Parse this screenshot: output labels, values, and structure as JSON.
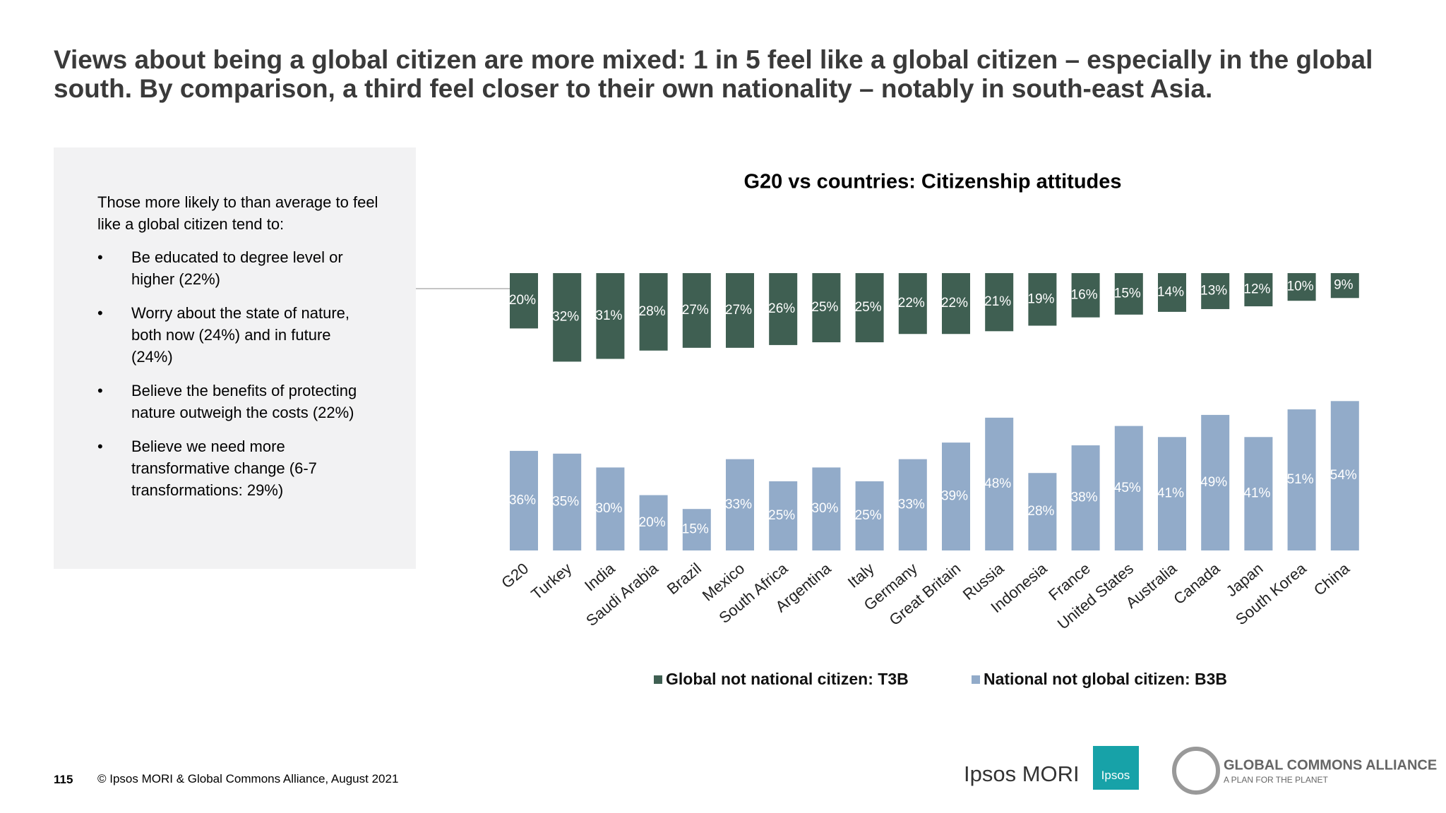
{
  "header": {
    "title": "Views about being a global citizen are more mixed: 1 in 5 feel like a global citizen – especially in the global south. By comparison, a third feel closer to their own nationality – notably in south-east Asia."
  },
  "panel": {
    "intro": "Those more likely to than average to feel like a global citizen tend to:",
    "bullets": [
      "Be educated to degree level or higher (22%)",
      "Worry about the state of nature, both now (24%) and in future (24%)",
      "Believe the benefits of protecting nature outweigh the costs (22%)",
      "Believe we need more transformative change (6-7 transformations: 29%)"
    ]
  },
  "chart_data": {
    "type": "bar",
    "title": "G20 vs countries: Citizenship attitudes",
    "categories": [
      "G20",
      "Turkey",
      "India",
      "Saudi Arabia",
      "Brazil",
      "Mexico",
      "South Africa",
      "Argentina",
      "Italy",
      "Germany",
      "Great Britain",
      "Russia",
      "Indonesia",
      "France",
      "United States",
      "Australia",
      "Canada",
      "Japan",
      "South Korea",
      "China"
    ],
    "series": [
      {
        "name": "Global not national citizen: T3B",
        "color": "#3f5f52",
        "values": [
          20,
          32,
          31,
          28,
          27,
          27,
          26,
          25,
          25,
          22,
          22,
          21,
          19,
          16,
          15,
          14,
          13,
          12,
          10,
          9
        ],
        "value_labels": [
          "20%",
          "32%",
          "31%",
          "28%",
          "27%",
          "27%",
          "26%",
          "25%",
          "25%",
          "22%",
          "22%",
          "21%",
          "19%",
          "16%",
          "15%",
          "14%",
          "13%",
          "12%",
          "10%",
          "9%"
        ]
      },
      {
        "name": "National not global citizen: B3B",
        "color": "#92abc9",
        "values": [
          36,
          35,
          30,
          20,
          15,
          33,
          25,
          30,
          25,
          33,
          39,
          48,
          28,
          38,
          45,
          41,
          49,
          41,
          51,
          54
        ],
        "value_labels": [
          "36%",
          "35%",
          "30%",
          "20%",
          "15%",
          "33%",
          "25%",
          "30%",
          "25%",
          "33%",
          "39%",
          "48%",
          "28%",
          "38%",
          "45%",
          "41%",
          "49%",
          "41%",
          "51%",
          "54%"
        ]
      }
    ]
  },
  "footer": {
    "page": "115",
    "copyright": "© Ipsos MORI & Global Commons Alliance, August 2021",
    "logos": [
      "Ipsos MORI",
      "Ipsos",
      "GLOBAL COMMONS ALLIANCE",
      "A PLAN FOR THE PLANET"
    ]
  }
}
